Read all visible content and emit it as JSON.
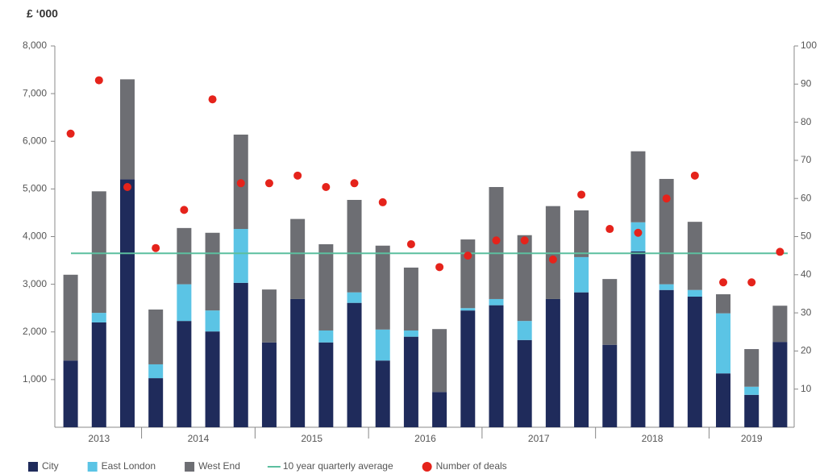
{
  "chart_data": {
    "type": "bar",
    "stacked": true,
    "title": "£ ‘000",
    "categories": [
      "2013",
      "2013",
      "2013",
      "2014",
      "2014",
      "2014",
      "2014",
      "2015",
      "2015",
      "2015",
      "2015",
      "2016",
      "2016",
      "2016",
      "2016",
      "2017",
      "2017",
      "2017",
      "2017",
      "2018",
      "2018",
      "2018",
      "2018",
      "2019",
      "2019",
      "2019"
    ],
    "series": [
      {
        "name": "City",
        "color": "#1f2b5b",
        "values": [
          1400,
          2200,
          5200,
          1030,
          2230,
          2010,
          3030,
          1780,
          2690,
          1780,
          2610,
          1400,
          1900,
          740,
          2450,
          2560,
          1830,
          2690,
          2830,
          1730,
          3690,
          2880,
          2740,
          1130,
          680,
          1790
        ]
      },
      {
        "name": "East London",
        "color": "#5bc4e5",
        "values": [
          0,
          200,
          0,
          290,
          770,
          440,
          1130,
          0,
          0,
          250,
          220,
          650,
          130,
          0,
          50,
          130,
          400,
          0,
          740,
          0,
          610,
          120,
          140,
          1260,
          170,
          0
        ]
      },
      {
        "name": "West End",
        "color": "#6d6e73",
        "values": [
          1800,
          2550,
          2100,
          1150,
          1180,
          1630,
          1980,
          1110,
          1680,
          1810,
          1940,
          1760,
          1320,
          1320,
          1440,
          2350,
          1800,
          1950,
          980,
          1380,
          1490,
          2210,
          1430,
          400,
          790,
          760
        ]
      },
      {
        "name": "10 year quarterly average",
        "type": "hline",
        "color": "#5cbf9f",
        "value": 3650
      },
      {
        "name": "Number of deals",
        "type": "scatter",
        "axis": "y2",
        "color": "#e5231b",
        "values": [
          77,
          91,
          63,
          47,
          57,
          86,
          64,
          64,
          66,
          63,
          64,
          59,
          48,
          42,
          45,
          49,
          49,
          44,
          61,
          52,
          51,
          60,
          66,
          38,
          38,
          46
        ]
      }
    ],
    "ylim": [
      0,
      8000
    ],
    "yticks": [
      {
        "value": 1000,
        "label": "1,000"
      },
      {
        "value": 2000,
        "label": "2,000"
      },
      {
        "value": 3000,
        "label": "3,000"
      },
      {
        "value": 4000,
        "label": "4,000"
      },
      {
        "value": 5000,
        "label": "5,000"
      },
      {
        "value": 6000,
        "label": "6,000"
      },
      {
        "value": 7000,
        "label": "7,000"
      },
      {
        "value": 8000,
        "label": "8,000"
      }
    ],
    "y2lim": [
      0,
      100
    ],
    "y2ticks": [
      10,
      20,
      30,
      40,
      50,
      60,
      70,
      80,
      90,
      100
    ],
    "grid": false,
    "legend": "bottom"
  }
}
